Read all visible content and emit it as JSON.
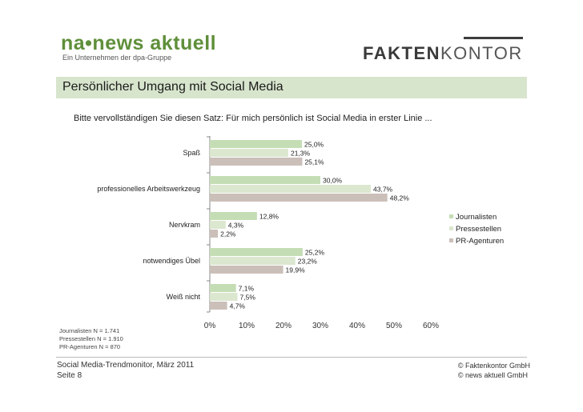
{
  "header": {
    "left_logo": {
      "brand": "na•news aktuell",
      "tagline": "Ein Unternehmen der dpa-Gruppe"
    },
    "right_logo": {
      "part1": "FAKTEN",
      "part2": "KONTOR"
    }
  },
  "title": "Persönlicher Umgang mit Social Media",
  "subtitle": "Bitte vervollständigen Sie diesen Satz: Für mich persönlich ist Social Media in erster Linie ...",
  "chart_data": {
    "type": "bar",
    "orientation": "horizontal",
    "categories": [
      "Spaß",
      "professionelles Arbeitswerkzeug",
      "Nervkram",
      "notwendiges Übel",
      "Weiß nicht"
    ],
    "series": [
      {
        "name": "Journalisten",
        "values": [
          25.0,
          30.0,
          12.8,
          25.2,
          7.1
        ],
        "labels": [
          "25,0%",
          "30,0%",
          "12,8%",
          "25,2%",
          "7,1%"
        ],
        "color": "#c5ddb5"
      },
      {
        "name": "Pressestellen",
        "values": [
          21.3,
          43.7,
          4.3,
          23.2,
          7.5
        ],
        "labels": [
          "21,3%",
          "43,7%",
          "4,3%",
          "23,2%",
          "7,5%"
        ],
        "color": "#dbe7cf"
      },
      {
        "name": "PR-Agenturen",
        "values": [
          25.1,
          48.2,
          2.2,
          19.9,
          4.7
        ],
        "labels": [
          "25,1%",
          "48,2%",
          "2,2%",
          "19,9%",
          "4,7%"
        ],
        "color": "#cbbfb9"
      }
    ],
    "xlim": [
      0,
      60
    ],
    "xticks": [
      "0%",
      "10%",
      "20%",
      "30%",
      "40%",
      "50%",
      "60%"
    ],
    "legend_position": "right",
    "grid": false
  },
  "notes": [
    "Journalisten N = 1.741",
    "Pressestellen N = 1.910",
    "PR-Agenturen N = 870"
  ],
  "footer": {
    "left": [
      "Social Media-Trendmonitor, März 2011",
      "Seite 8"
    ],
    "right": [
      "© Faktenkontor GmbH",
      "© news aktuell GmbH"
    ]
  }
}
